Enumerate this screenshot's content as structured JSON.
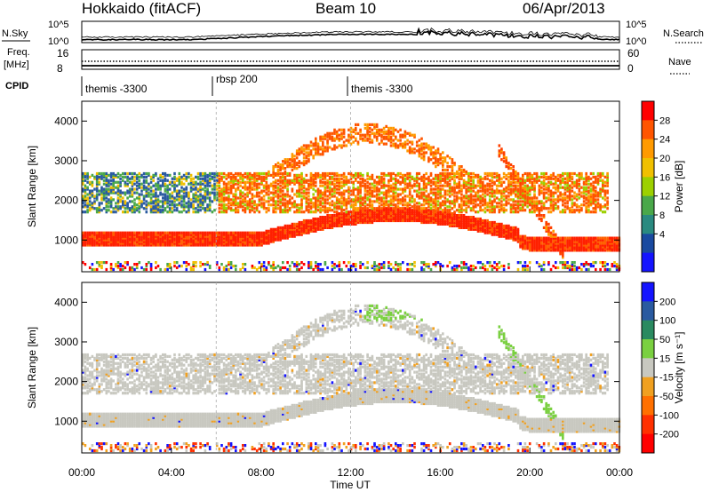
{
  "header": {
    "station": "Hokkaido (fitACF)",
    "beam": "Beam 10",
    "date": "06/Apr/2013"
  },
  "strips": {
    "nsky_label": "N.Sky",
    "nsearch_label": "N.Search",
    "nsky_ticks": [
      "10^5",
      "10^0"
    ],
    "nsky_right_ticks": [
      "10^5",
      "10^0"
    ],
    "freq_label_line1": "Freq.",
    "freq_label_line2": "[MHz]",
    "freq_ticks": [
      "16",
      "8"
    ],
    "nave_label": "Nave",
    "nave_ticks": [
      "60",
      "0"
    ],
    "cpid_label": "CPID",
    "cpid_segments": [
      {
        "label": "themis -3300",
        "start_hour": 0
      },
      {
        "label": "rbsp 200",
        "start_hour": 6
      },
      {
        "label": "themis -3300",
        "start_hour": 12
      }
    ]
  },
  "chart_data": [
    {
      "type": "heatmap",
      "quantity": "Power",
      "ylabel": "Slant Range [km]",
      "xlabel": "",
      "ylim": [
        200,
        4500
      ],
      "xlim_hours": [
        0,
        24
      ],
      "yticks": [
        "1000",
        "2000",
        "3000",
        "4000"
      ],
      "colorbar": {
        "label": "Power [dB]",
        "ticks": [
          "28",
          "24",
          "20",
          "16",
          "12",
          "8",
          "4"
        ],
        "colors": [
          "#ff0000",
          "#ff5500",
          "#ff9a00",
          "#f0c000",
          "#9cd000",
          "#4aa84a",
          "#2a8a80",
          "#1a4aa0",
          "#1414ff"
        ]
      }
    },
    {
      "type": "heatmap",
      "quantity": "Velocity",
      "ylabel": "Slant Range [km]",
      "xlabel": "Time UT",
      "ylim": [
        200,
        4500
      ],
      "xlim_hours": [
        0,
        24
      ],
      "xticks": [
        "00:00",
        "04:00",
        "08:00",
        "12:00",
        "16:00",
        "20:00",
        "00:00"
      ],
      "yticks": [
        "1000",
        "2000",
        "3000",
        "4000"
      ],
      "colorbar": {
        "label": "Velocity [m s⁻¹]",
        "ticks": [
          "200",
          "100",
          "50",
          "15",
          "-15",
          "-50",
          "-100",
          "-200"
        ],
        "colors": [
          "#1414ff",
          "#2a5aa0",
          "#2a8a60",
          "#7ad040",
          "#c8c8c0",
          "#f0a020",
          "#ff7000",
          "#ff3000",
          "#ff0000"
        ]
      }
    }
  ]
}
